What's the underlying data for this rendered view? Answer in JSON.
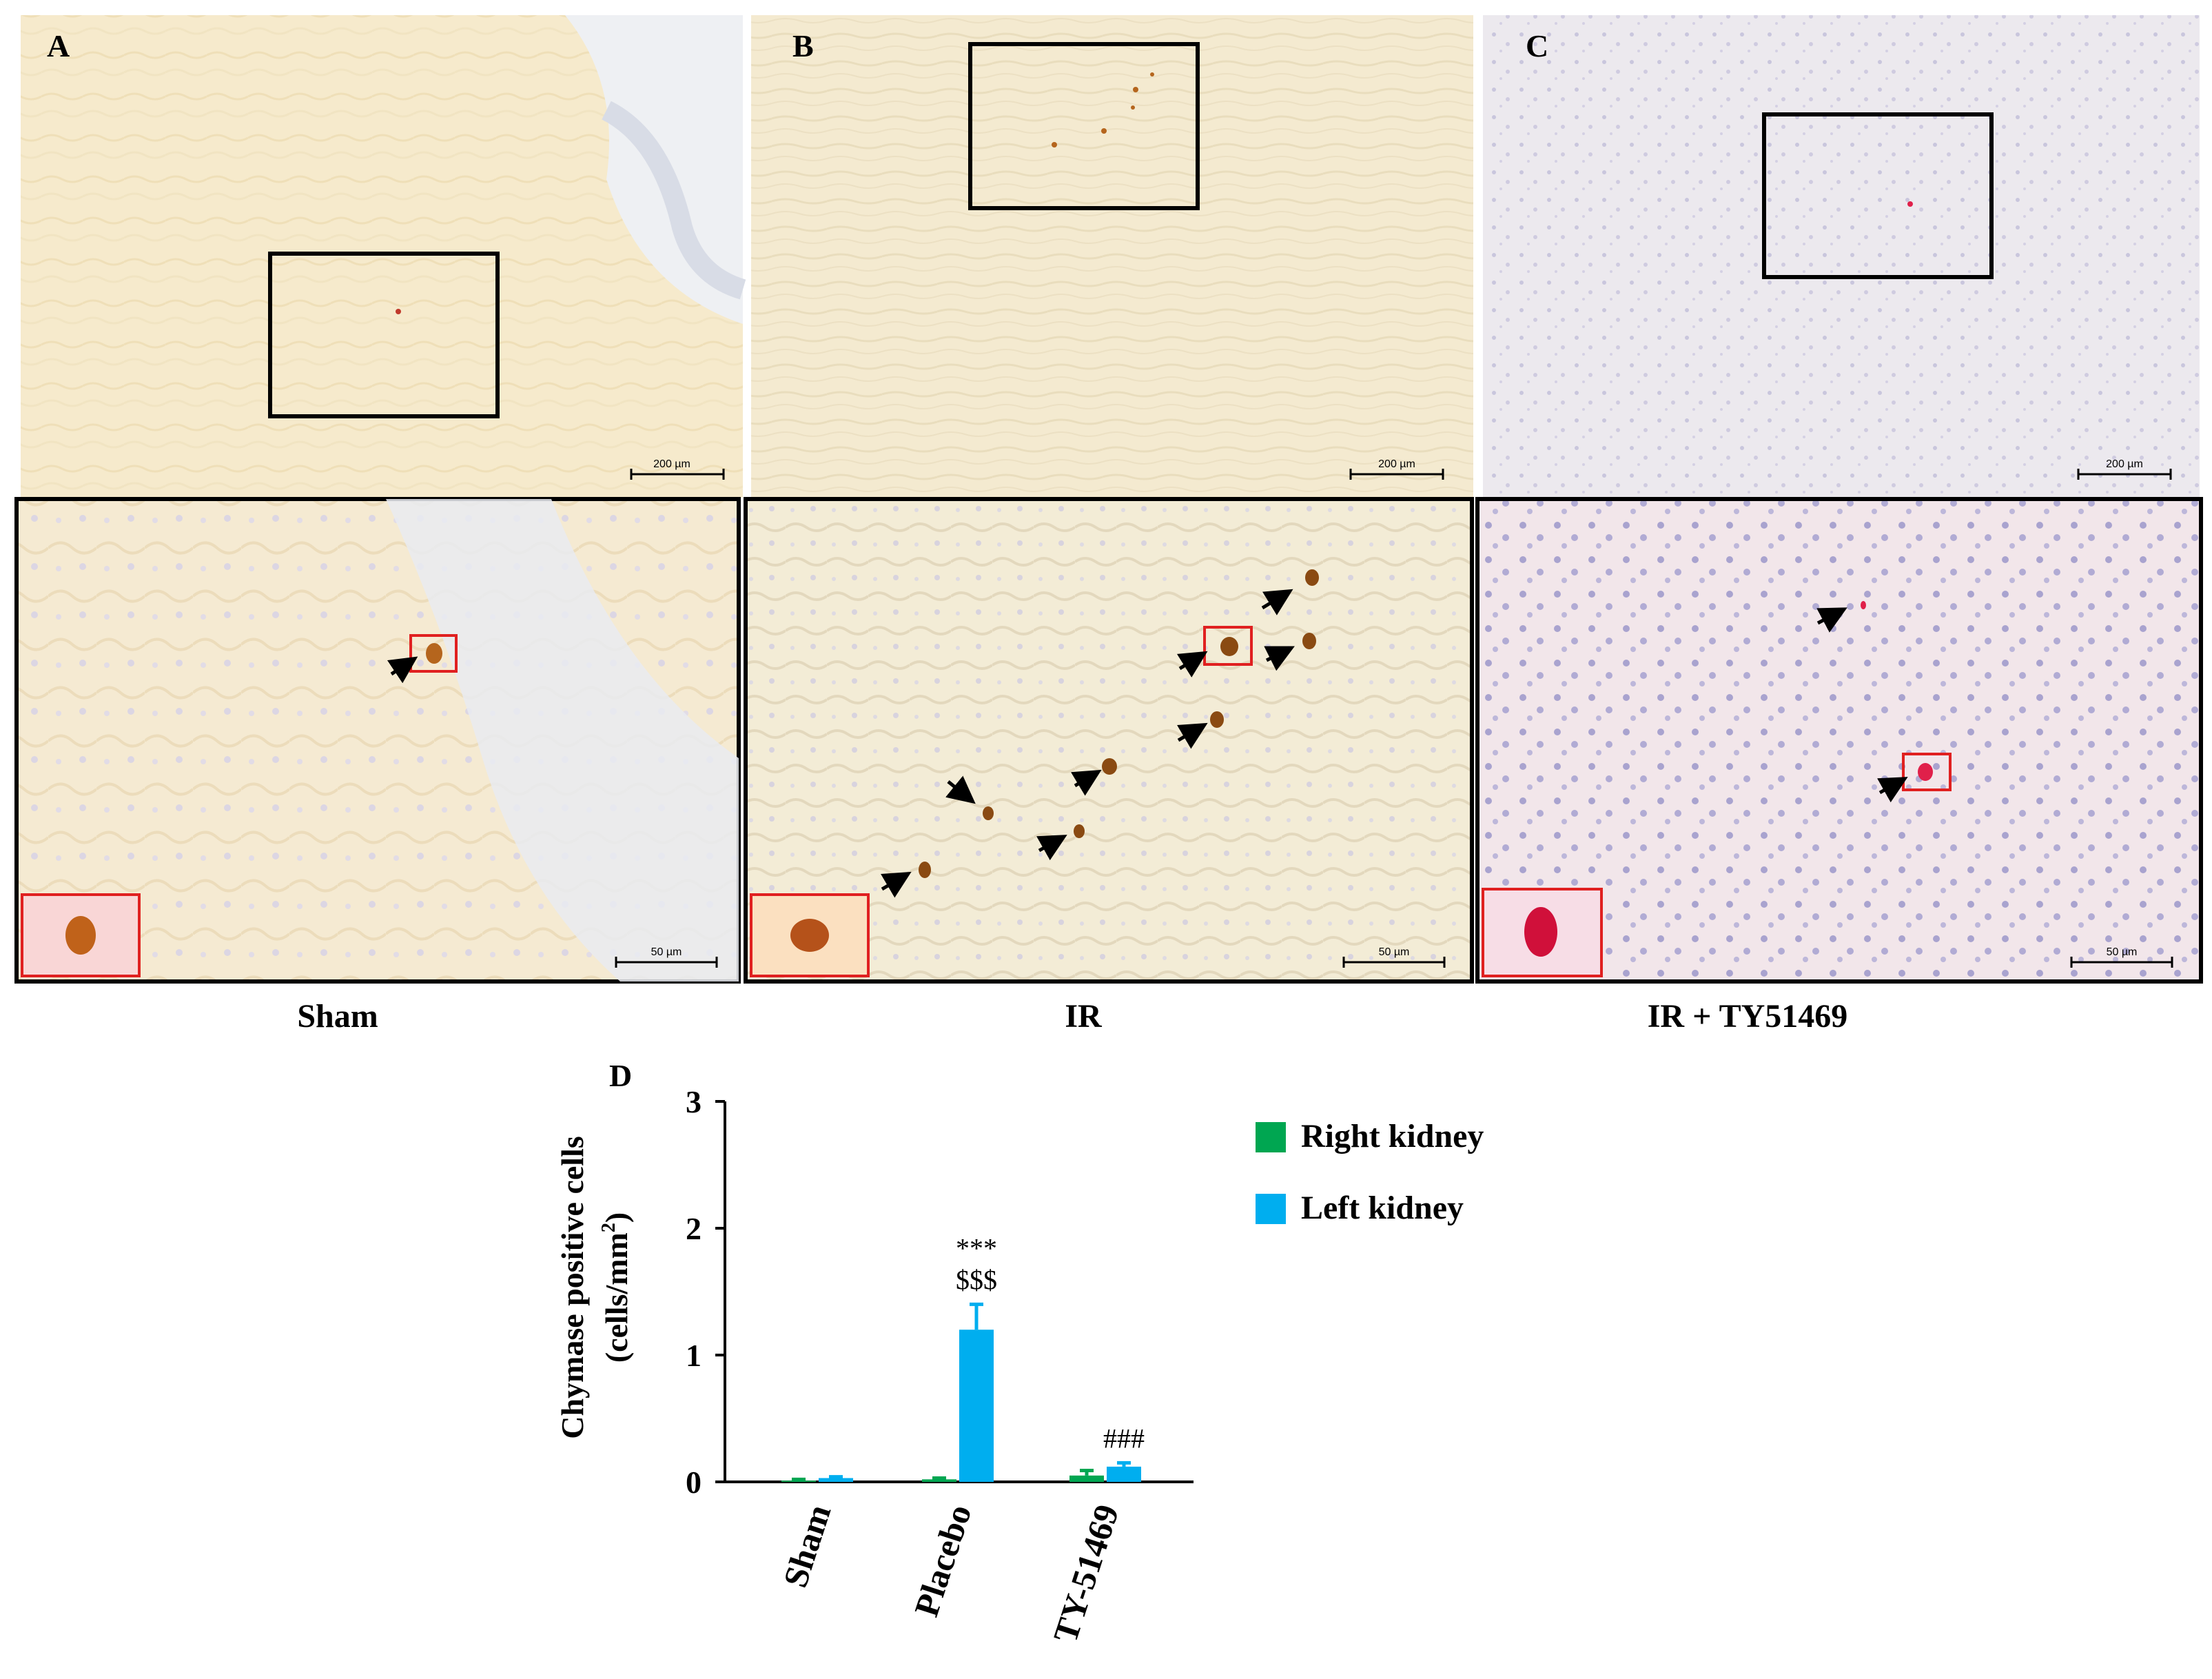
{
  "panels": [
    {
      "letter": "A",
      "group": "Sham",
      "scale_top": "200 µm",
      "scale_bottom": "50 µm"
    },
    {
      "letter": "B",
      "group": "IR",
      "scale_top": "200 µm",
      "scale_bottom": "50 µm"
    },
    {
      "letter": "C",
      "group": "IR + TY51469",
      "scale_top": "200 µm",
      "scale_bottom": "50 µm"
    }
  ],
  "colors": {
    "right_kidney": "#00a651",
    "left_kidney": "#00aeef",
    "tissue_a": "#f6eacc",
    "tissue_b": "#f4ead0",
    "tissue_c": "#ece9ee",
    "cell_brown": "#b5651d",
    "cell_red": "#e0204a",
    "inset_border": "#e02020"
  },
  "chart_data": {
    "type": "bar",
    "panel_label": "D",
    "categories": [
      "Sham",
      "Placebo",
      "TY-51469"
    ],
    "series": [
      {
        "name": "Right kidney",
        "values": [
          0.01,
          0.02,
          0.05
        ],
        "errors": [
          0.01,
          0.01,
          0.04
        ]
      },
      {
        "name": "Left kidney",
        "values": [
          0.03,
          1.2,
          0.12
        ],
        "errors": [
          0.01,
          0.2,
          0.03
        ]
      }
    ],
    "annotations": [
      {
        "category": "Placebo",
        "series": "Left kidney",
        "lines": [
          "***",
          "$$$"
        ]
      },
      {
        "category": "TY-51469",
        "series": "Left kidney",
        "lines": [
          "###"
        ]
      }
    ],
    "ylabel_line1": "Chymase positive cells",
    "ylabel_line2_main": "(cells/mm",
    "ylabel_line2_sup": "2",
    "ylabel_line2_end": ")",
    "yticks": [
      0,
      1,
      2,
      3
    ],
    "ylim": [
      0,
      3
    ],
    "legend_position": "right"
  }
}
